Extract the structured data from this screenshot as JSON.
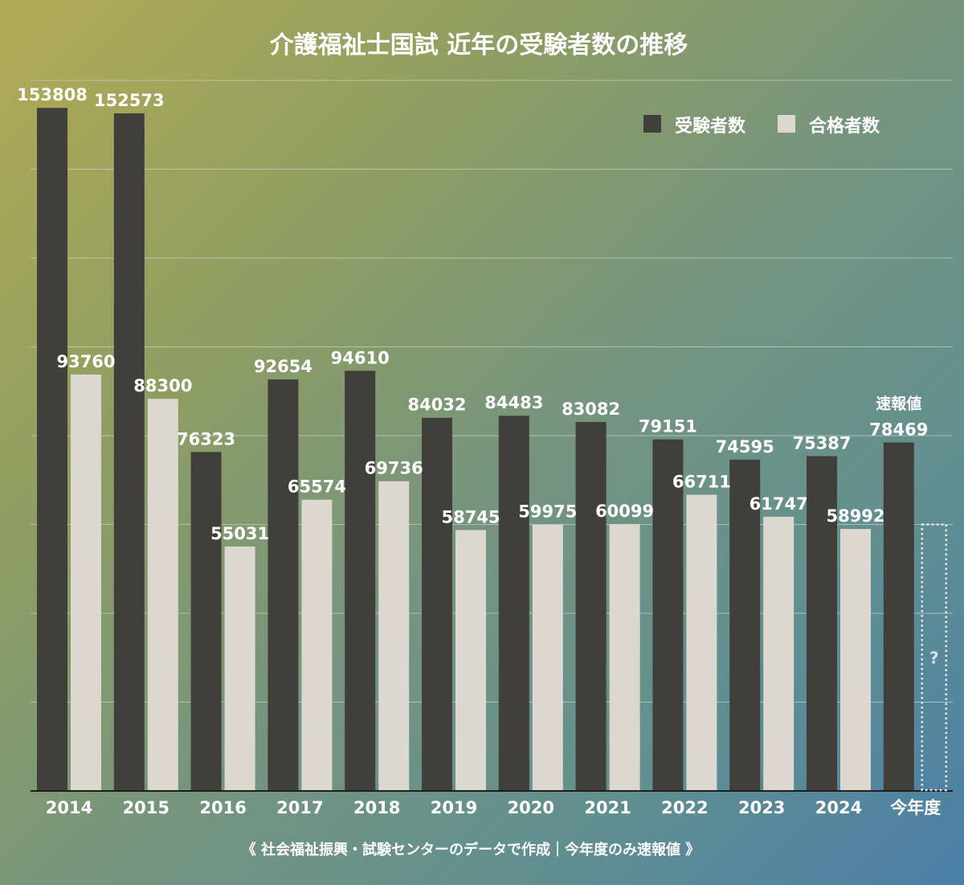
{
  "chart_data": {
    "type": "bar",
    "title": "介護福祉士国試 近年の受験者数の推移",
    "categories": [
      "2014",
      "2015",
      "2016",
      "2017",
      "2018",
      "2019",
      "2020",
      "2021",
      "2022",
      "2023",
      "2024",
      "今年度"
    ],
    "series": [
      {
        "name": "受験者数",
        "color": "#403f3a",
        "values": [
          153808,
          152573,
          76323,
          92654,
          94610,
          84032,
          84483,
          83082,
          79151,
          74595,
          75387,
          78469
        ]
      },
      {
        "name": "合格者数",
        "color": "#dcd7cf",
        "values": [
          93760,
          88300,
          55031,
          65574,
          69736,
          58745,
          59975,
          60099,
          66711,
          61747,
          58992,
          null
        ]
      }
    ],
    "xlabel": "",
    "ylabel": "",
    "ylim": [
      0,
      160000
    ],
    "ytick_step": 20000,
    "grid": true,
    "y_tick_labels_visible": false,
    "legend": {
      "position": "top-right",
      "entries": [
        "受験者数",
        "合格者数"
      ]
    },
    "annotations": {
      "preliminary_label": "速報値",
      "unknown_marker": "?"
    },
    "footnote": "《 社会福祉振興・試験センターのデータで作成｜今年度のみ速報値 》"
  },
  "colors": {
    "examinees": "#403f3a",
    "passers": "#dcd7cf",
    "text": "#ffffff",
    "grid": "#c8ccc0"
  }
}
